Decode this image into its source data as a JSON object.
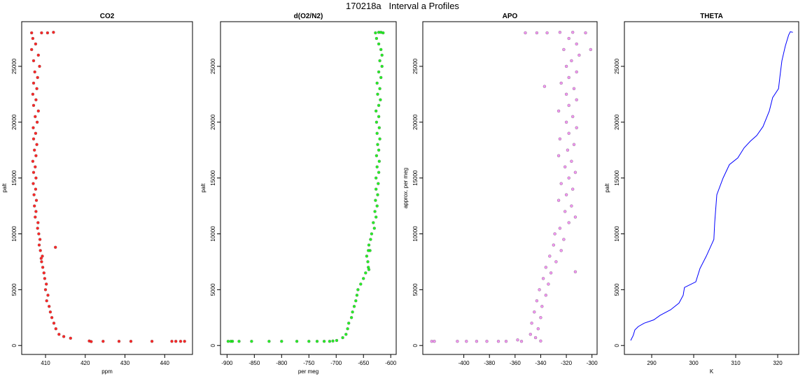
{
  "figure_title": "170218a   Interval a Profiles",
  "colors": {
    "co2": "#ff0000",
    "o2n2": "#00ee00",
    "apo": "#ee82ee",
    "theta": "#0000ff",
    "outline": "#000000"
  },
  "chart_data": [
    {
      "type": "scatter",
      "title": "CO2",
      "xlabel": "ppm",
      "ylabel": "palt",
      "xlim": [
        404,
        447
      ],
      "ylim": [
        -800,
        29000
      ],
      "xticks": [
        410,
        420,
        430,
        440
      ],
      "yticks": [
        0,
        5000,
        10000,
        15000,
        20000,
        25000
      ],
      "points": [
        [
          406.5,
          28000
        ],
        [
          409.0,
          28000
        ],
        [
          410.5,
          28000
        ],
        [
          412.0,
          28050
        ],
        [
          406.8,
          27500
        ],
        [
          407.5,
          27000
        ],
        [
          406.5,
          26500
        ],
        [
          408.2,
          26000
        ],
        [
          407.0,
          25500
        ],
        [
          408.5,
          25000
        ],
        [
          407.3,
          24500
        ],
        [
          408.0,
          24000
        ],
        [
          407.0,
          23500
        ],
        [
          407.8,
          23000
        ],
        [
          406.8,
          22500
        ],
        [
          407.6,
          22000
        ],
        [
          407.0,
          21500
        ],
        [
          408.2,
          21000
        ],
        [
          407.4,
          20500
        ],
        [
          407.9,
          20000
        ],
        [
          406.9,
          19500
        ],
        [
          407.5,
          19000
        ],
        [
          407.0,
          18500
        ],
        [
          407.8,
          18000
        ],
        [
          407.2,
          17500
        ],
        [
          407.6,
          17000
        ],
        [
          406.8,
          16500
        ],
        [
          407.4,
          16000
        ],
        [
          407.0,
          15500
        ],
        [
          407.6,
          15000
        ],
        [
          406.9,
          14500
        ],
        [
          407.5,
          14000
        ],
        [
          407.1,
          13500
        ],
        [
          407.7,
          13000
        ],
        [
          407.2,
          12500
        ],
        [
          407.6,
          12000
        ],
        [
          407.4,
          11500
        ],
        [
          408.1,
          11000
        ],
        [
          408.0,
          10500
        ],
        [
          408.3,
          10000
        ],
        [
          408.6,
          9500
        ],
        [
          408.4,
          9000
        ],
        [
          408.7,
          8500
        ],
        [
          409.2,
          8000
        ],
        [
          409.0,
          7500
        ],
        [
          409.3,
          7000
        ],
        [
          409.6,
          6500
        ],
        [
          409.8,
          6000
        ],
        [
          410.2,
          5500
        ],
        [
          410.0,
          5000
        ],
        [
          410.6,
          4500
        ],
        [
          410.3,
          4000
        ],
        [
          410.9,
          3500
        ],
        [
          411.2,
          3000
        ],
        [
          411.6,
          2500
        ],
        [
          412.1,
          2000
        ],
        [
          412.6,
          1500
        ],
        [
          413.4,
          1000
        ],
        [
          414.6,
          800
        ],
        [
          416.3,
          650
        ],
        [
          421.0,
          400
        ],
        [
          421.5,
          350
        ],
        [
          424.5,
          380
        ],
        [
          428.5,
          380
        ],
        [
          431.5,
          380
        ],
        [
          436.8,
          380
        ],
        [
          441.8,
          380
        ],
        [
          442.8,
          380
        ],
        [
          444.0,
          380
        ],
        [
          445.0,
          380
        ],
        [
          412.5,
          8800
        ],
        [
          408.9,
          7800
        ]
      ]
    },
    {
      "type": "scatter",
      "title": "d(O2/N2)",
      "xlabel": "per meg",
      "ylabel": "palt",
      "xlim": [
        -912,
        -590
      ],
      "ylim": [
        -800,
        29000
      ],
      "xticks": [
        -900,
        -850,
        -800,
        -750,
        -700,
        -650,
        -600
      ],
      "yticks": [
        0,
        5000,
        10000,
        15000,
        20000,
        25000
      ],
      "points": [
        [
          -628,
          28000
        ],
        [
          -622,
          28050
        ],
        [
          -618,
          28050
        ],
        [
          -614,
          28000
        ],
        [
          -626,
          27500
        ],
        [
          -622,
          27000
        ],
        [
          -618,
          26500
        ],
        [
          -616,
          26000
        ],
        [
          -620,
          25500
        ],
        [
          -616,
          25000
        ],
        [
          -622,
          24500
        ],
        [
          -618,
          24000
        ],
        [
          -625,
          23500
        ],
        [
          -620,
          23000
        ],
        [
          -624,
          22500
        ],
        [
          -619,
          22000
        ],
        [
          -622,
          21500
        ],
        [
          -627,
          21000
        ],
        [
          -622,
          20500
        ],
        [
          -626,
          20000
        ],
        [
          -621,
          19500
        ],
        [
          -625,
          19000
        ],
        [
          -620,
          18500
        ],
        [
          -624,
          18000
        ],
        [
          -622,
          17500
        ],
        [
          -626,
          17000
        ],
        [
          -621,
          16500
        ],
        [
          -625,
          16000
        ],
        [
          -622,
          15500
        ],
        [
          -627,
          15000
        ],
        [
          -623,
          14500
        ],
        [
          -627,
          14000
        ],
        [
          -624,
          13500
        ],
        [
          -628,
          13000
        ],
        [
          -625,
          12500
        ],
        [
          -629,
          12000
        ],
        [
          -627,
          11500
        ],
        [
          -632,
          11000
        ],
        [
          -630,
          10500
        ],
        [
          -635,
          10000
        ],
        [
          -637,
          9500
        ],
        [
          -640,
          9000
        ],
        [
          -638,
          8500
        ],
        [
          -644,
          8000
        ],
        [
          -642,
          7500
        ],
        [
          -641,
          7000
        ],
        [
          -646,
          6500
        ],
        [
          -650,
          6000
        ],
        [
          -655,
          5500
        ],
        [
          -660,
          5000
        ],
        [
          -662,
          4500
        ],
        [
          -664,
          4000
        ],
        [
          -667,
          3500
        ],
        [
          -670,
          3000
        ],
        [
          -672,
          2500
        ],
        [
          -677,
          2000
        ],
        [
          -679,
          1500
        ],
        [
          -682,
          1000
        ],
        [
          -688,
          700
        ],
        [
          -699,
          450
        ],
        [
          -706,
          400
        ],
        [
          -712,
          380
        ],
        [
          -722,
          380
        ],
        [
          -735,
          380
        ],
        [
          -750,
          380
        ],
        [
          -772,
          380
        ],
        [
          -800,
          380
        ],
        [
          -823,
          380
        ],
        [
          -855,
          380
        ],
        [
          -878,
          380
        ],
        [
          -890,
          380
        ],
        [
          -893,
          380
        ],
        [
          -898,
          380
        ],
        [
          -641,
          8500
        ],
        [
          -640,
          6800
        ]
      ]
    },
    {
      "type": "scatter",
      "title": "APO",
      "xlabel": "",
      "ylabel": "approx. per meg",
      "xlim": [
        -432,
        -296
      ],
      "ylim": [
        -800,
        29000
      ],
      "xticks": [
        -400,
        -380,
        -360,
        -340,
        -320,
        -300
      ],
      "yticks": [
        0,
        5000,
        10000,
        15000,
        20000,
        25000
      ],
      "points": [
        [
          -352,
          28000
        ],
        [
          -343,
          28000
        ],
        [
          -335,
          28000
        ],
        [
          -325,
          28050
        ],
        [
          -315,
          28050
        ],
        [
          -305,
          28000
        ],
        [
          -318,
          27500
        ],
        [
          -312,
          27000
        ],
        [
          -322,
          26500
        ],
        [
          -310,
          26000
        ],
        [
          -316,
          25500
        ],
        [
          -320,
          25000
        ],
        [
          -312,
          24500
        ],
        [
          -318,
          24000
        ],
        [
          -324,
          23500
        ],
        [
          -314,
          23000
        ],
        [
          -320,
          22500
        ],
        [
          -312,
          22000
        ],
        [
          -318,
          21500
        ],
        [
          -326,
          21000
        ],
        [
          -315,
          20500
        ],
        [
          -320,
          20000
        ],
        [
          -312,
          19500
        ],
        [
          -318,
          19000
        ],
        [
          -325,
          18500
        ],
        [
          -314,
          18000
        ],
        [
          -319,
          17500
        ],
        [
          -326,
          17000
        ],
        [
          -316,
          16500
        ],
        [
          -321,
          16000
        ],
        [
          -313,
          15500
        ],
        [
          -318,
          15000
        ],
        [
          -324,
          14500
        ],
        [
          -315,
          14000
        ],
        [
          -320,
          13500
        ],
        [
          -326,
          13000
        ],
        [
          -316,
          12500
        ],
        [
          -321,
          12000
        ],
        [
          -313,
          11500
        ],
        [
          -318,
          11000
        ],
        [
          -325,
          10500
        ],
        [
          -329,
          10000
        ],
        [
          -322,
          9500
        ],
        [
          -330,
          9000
        ],
        [
          -324,
          8500
        ],
        [
          -333,
          8000
        ],
        [
          -328,
          7500
        ],
        [
          -336,
          7000
        ],
        [
          -332,
          6500
        ],
        [
          -338,
          6000
        ],
        [
          -334,
          5500
        ],
        [
          -341,
          5000
        ],
        [
          -336,
          4500
        ],
        [
          -343,
          4000
        ],
        [
          -339,
          3500
        ],
        [
          -345,
          3000
        ],
        [
          -340,
          2500
        ],
        [
          -347,
          2000
        ],
        [
          -342,
          1500
        ],
        [
          -348,
          1000
        ],
        [
          -344,
          700
        ],
        [
          -358,
          500
        ],
        [
          -340,
          400
        ],
        [
          -425,
          380
        ],
        [
          -423,
          380
        ],
        [
          -405,
          380
        ],
        [
          -398,
          380
        ],
        [
          -390,
          380
        ],
        [
          -382,
          380
        ],
        [
          -373,
          380
        ],
        [
          -367,
          380
        ],
        [
          -355,
          380
        ],
        [
          -301,
          26500
        ],
        [
          -337,
          23200
        ],
        [
          -313,
          6600
        ]
      ]
    },
    {
      "type": "line",
      "title": "THETA",
      "xlabel": "K",
      "ylabel": "palt",
      "xlim": [
        283.5,
        325
      ],
      "ylim": [
        -800,
        29000
      ],
      "xticks": [
        290,
        300,
        310,
        320
      ],
      "yticks": [
        0,
        5000,
        10000,
        15000,
        20000,
        25000
      ],
      "points": [
        [
          285.0,
          450
        ],
        [
          285.6,
          900
        ],
        [
          286.0,
          1400
        ],
        [
          286.8,
          1700
        ],
        [
          288.2,
          2000
        ],
        [
          290.5,
          2300
        ],
        [
          292.0,
          2700
        ],
        [
          294.5,
          3200
        ],
        [
          296.5,
          3800
        ],
        [
          297.5,
          4500
        ],
        [
          297.8,
          5200
        ],
        [
          300.5,
          5700
        ],
        [
          301.5,
          6900
        ],
        [
          303.0,
          8000
        ],
        [
          304.8,
          9500
        ],
        [
          305.0,
          11000
        ],
        [
          305.5,
          13500
        ],
        [
          307.0,
          15000
        ],
        [
          308.5,
          16200
        ],
        [
          310.5,
          16800
        ],
        [
          312.0,
          17700
        ],
        [
          313.5,
          18300
        ],
        [
          315.0,
          18800
        ],
        [
          316.5,
          19600
        ],
        [
          318.0,
          21000
        ],
        [
          318.8,
          22200
        ],
        [
          320.2,
          23000
        ],
        [
          320.5,
          24000
        ],
        [
          321.0,
          25500
        ],
        [
          321.8,
          26800
        ],
        [
          322.6,
          27800
        ],
        [
          323.0,
          28100
        ],
        [
          323.6,
          28050
        ]
      ]
    }
  ]
}
